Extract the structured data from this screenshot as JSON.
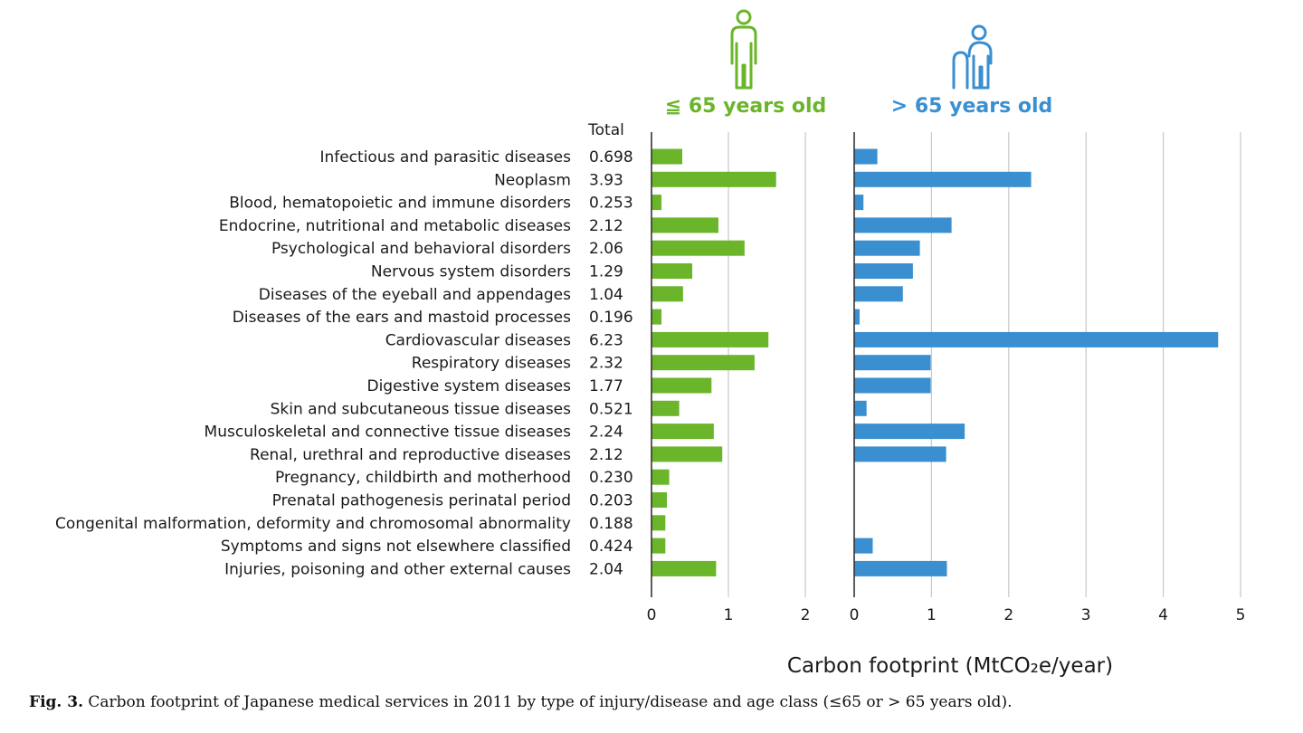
{
  "chart_data": {
    "type": "bar",
    "orientation": "horizontal",
    "totals_header": "Total",
    "xlabel": "Carbon footprint (MtCO₂e/year)",
    "colors": {
      "young": "#6ab52a",
      "old": "#3a8fd1",
      "grid": "#c8c8c8",
      "axis": "#333333"
    },
    "categories": [
      "Infectious and parasitic diseases",
      "Neoplasm",
      "Blood, hematopoietic and immune disorders",
      "Endocrine, nutritional and metabolic diseases",
      "Psychological and behavioral disorders",
      "Nervous system disorders",
      "Diseases of the eyeball and appendages",
      "Diseases of the ears and mastoid processes",
      "Cardiovascular diseases",
      "Respiratory diseases",
      "Digestive system diseases",
      "Skin and subcutaneous tissue diseases",
      "Musculoskeletal and connective tissue diseases",
      "Renal, urethral and reproductive diseases",
      "Pregnancy, childbirth and motherhood",
      "Prenatal pathogenesis perinatal period",
      "Congenital malformation, deformity and chromosomal abnormality",
      "Symptoms and signs not elsewhere classified",
      "Injuries, poisoning and other external causes"
    ],
    "totals": [
      "0.698",
      "3.93",
      "0.253",
      "2.12",
      "2.06",
      "1.29",
      "1.04",
      "0.196",
      "6.23",
      "2.32",
      "1.77",
      "0.521",
      "2.24",
      "2.12",
      "0.230",
      "0.203",
      "0.188",
      "0.424",
      "2.04"
    ],
    "series": [
      {
        "name": "≦ 65 years old",
        "xlim": [
          0,
          2
        ],
        "ticks": [
          "0",
          "1",
          "2"
        ],
        "values": [
          0.4,
          1.62,
          0.13,
          0.87,
          1.21,
          0.53,
          0.41,
          0.13,
          1.52,
          1.34,
          0.78,
          0.36,
          0.81,
          0.92,
          0.23,
          0.2,
          0.18,
          0.18,
          0.84
        ]
      },
      {
        "name": "> 65 years old",
        "xlim": [
          0,
          5
        ],
        "ticks": [
          "0",
          "1",
          "2",
          "3",
          "4",
          "5"
        ],
        "values": [
          0.3,
          2.29,
          0.12,
          1.26,
          0.85,
          0.76,
          0.63,
          0.07,
          4.71,
          0.99,
          0.99,
          0.16,
          1.43,
          1.19,
          0.0,
          0.0,
          0.0,
          0.24,
          1.2
        ]
      }
    ]
  },
  "caption": {
    "label": "Fig. 3.",
    "text": "Carbon footprint of Japanese medical services in 2011 by type of injury/disease and age class (≤65 or > 65 years old)."
  }
}
